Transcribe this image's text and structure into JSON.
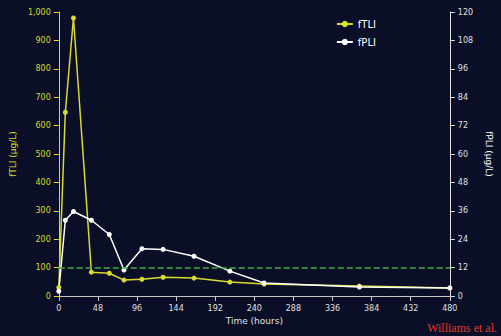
{
  "chart_data": {
    "type": "line",
    "x_label": "Time (hours)",
    "y_label": "fTLI (μg/L)",
    "y2_label": "fPLI (μg/L)",
    "xlim": [
      0,
      480
    ],
    "xticks": [
      0,
      48,
      96,
      144,
      192,
      240,
      288,
      336,
      384,
      432,
      480
    ],
    "ylim": [
      0,
      1000
    ],
    "yticks": [
      0,
      100,
      200,
      300,
      400,
      500,
      600,
      700,
      800,
      900,
      1000
    ],
    "y2lim": [
      0,
      120
    ],
    "y2ticks": [
      0,
      12,
      24,
      36,
      48,
      60,
      72,
      84,
      96,
      108,
      120
    ],
    "legend": "upper right",
    "grid": false,
    "x": [
      0,
      8,
      18,
      40,
      62,
      80,
      102,
      128,
      166,
      210,
      252,
      369,
      480
    ],
    "series": [
      {
        "name": "fTLI",
        "color": "#d8dc2c",
        "marker": "circle",
        "values": [
          30,
          647,
          979,
          84,
          80,
          56,
          59,
          66,
          63,
          49,
          42,
          35,
          28
        ]
      },
      {
        "name": "fPLI",
        "color": "#ffffff",
        "marker": "circle",
        "axis": "y2",
        "values": [
          2,
          32,
          35.7,
          32,
          26,
          11,
          20,
          19.7,
          16.8,
          10.5,
          5.5,
          3.8,
          3.4
        ]
      }
    ],
    "reference_lines": [
      {
        "value": 100,
        "axis": "y",
        "color": "#3cb043",
        "line_style": "dashed"
      }
    ],
    "annotations": [
      "Williams et al."
    ]
  }
}
